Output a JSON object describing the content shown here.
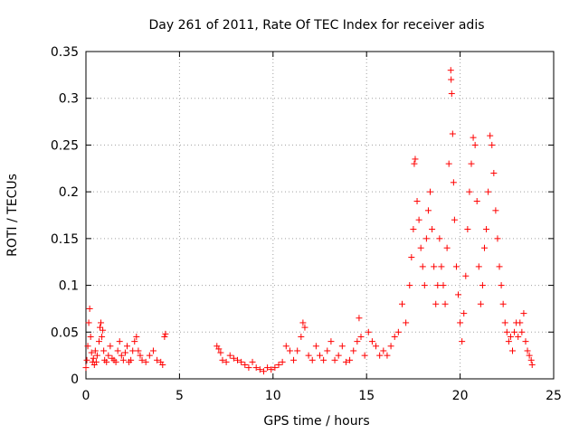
{
  "chart_data": {
    "type": "scatter",
    "title": "Day 261 of 2011, Rate Of TEC Index for receiver adis",
    "xlabel": "GPS time / hours",
    "ylabel": "ROTI / TECUs",
    "xlim": [
      0,
      25
    ],
    "ylim": [
      0,
      0.35
    ],
    "xticks": [
      0,
      5,
      10,
      15,
      20,
      25
    ],
    "xtick_labels": [
      "0",
      "5",
      "10",
      "15",
      "20",
      "25"
    ],
    "yticks": [
      0,
      0.05,
      0.1,
      0.15,
      0.2,
      0.25,
      0.3,
      0.35
    ],
    "ytick_labels": [
      "0",
      "0.05",
      "0.1",
      "0.15",
      "0.2",
      "0.25",
      "0.3",
      "0.35"
    ],
    "grid": true,
    "marker": "+",
    "color": "#ff0000",
    "series": [
      {
        "name": "ROTI",
        "points": [
          [
            0.0,
            0.012
          ],
          [
            0.05,
            0.02
          ],
          [
            0.1,
            0.035
          ],
          [
            0.15,
            0.06
          ],
          [
            0.2,
            0.075
          ],
          [
            0.25,
            0.045
          ],
          [
            0.3,
            0.028
          ],
          [
            0.35,
            0.018
          ],
          [
            0.4,
            0.022
          ],
          [
            0.45,
            0.015
          ],
          [
            0.5,
            0.03
          ],
          [
            0.55,
            0.018
          ],
          [
            0.6,
            0.025
          ],
          [
            0.7,
            0.04
          ],
          [
            0.75,
            0.055
          ],
          [
            0.8,
            0.06
          ],
          [
            0.85,
            0.045
          ],
          [
            0.9,
            0.052
          ],
          [
            0.95,
            0.03
          ],
          [
            1.0,
            0.02
          ],
          [
            1.1,
            0.018
          ],
          [
            1.2,
            0.025
          ],
          [
            1.3,
            0.035
          ],
          [
            1.4,
            0.022
          ],
          [
            1.5,
            0.02
          ],
          [
            1.6,
            0.018
          ],
          [
            1.7,
            0.03
          ],
          [
            1.8,
            0.04
          ],
          [
            1.9,
            0.025
          ],
          [
            2.0,
            0.02
          ],
          [
            2.1,
            0.028
          ],
          [
            2.2,
            0.035
          ],
          [
            2.3,
            0.018
          ],
          [
            2.4,
            0.02
          ],
          [
            2.5,
            0.03
          ],
          [
            2.6,
            0.04
          ],
          [
            2.7,
            0.045
          ],
          [
            2.8,
            0.03
          ],
          [
            2.9,
            0.025
          ],
          [
            3.0,
            0.02
          ],
          [
            3.2,
            0.018
          ],
          [
            3.4,
            0.025
          ],
          [
            3.6,
            0.03
          ],
          [
            3.8,
            0.02
          ],
          [
            4.0,
            0.018
          ],
          [
            4.1,
            0.015
          ],
          [
            4.2,
            0.045
          ],
          [
            4.25,
            0.048
          ],
          [
            7.0,
            0.035
          ],
          [
            7.1,
            0.032
          ],
          [
            7.2,
            0.028
          ],
          [
            7.3,
            0.02
          ],
          [
            7.5,
            0.018
          ],
          [
            7.7,
            0.025
          ],
          [
            7.9,
            0.022
          ],
          [
            8.1,
            0.02
          ],
          [
            8.3,
            0.018
          ],
          [
            8.5,
            0.015
          ],
          [
            8.7,
            0.012
          ],
          [
            8.9,
            0.018
          ],
          [
            9.1,
            0.012
          ],
          [
            9.3,
            0.01
          ],
          [
            9.5,
            0.008
          ],
          [
            9.7,
            0.012
          ],
          [
            9.9,
            0.01
          ],
          [
            10.1,
            0.012
          ],
          [
            10.3,
            0.015
          ],
          [
            10.5,
            0.018
          ],
          [
            10.7,
            0.035
          ],
          [
            10.9,
            0.03
          ],
          [
            11.1,
            0.02
          ],
          [
            11.3,
            0.03
          ],
          [
            11.5,
            0.045
          ],
          [
            11.6,
            0.06
          ],
          [
            11.7,
            0.055
          ],
          [
            11.9,
            0.025
          ],
          [
            12.1,
            0.02
          ],
          [
            12.3,
            0.035
          ],
          [
            12.5,
            0.025
          ],
          [
            12.7,
            0.02
          ],
          [
            12.9,
            0.03
          ],
          [
            13.1,
            0.04
          ],
          [
            13.3,
            0.02
          ],
          [
            13.5,
            0.025
          ],
          [
            13.7,
            0.035
          ],
          [
            13.9,
            0.018
          ],
          [
            14.1,
            0.02
          ],
          [
            14.3,
            0.03
          ],
          [
            14.5,
            0.04
          ],
          [
            14.6,
            0.065
          ],
          [
            14.7,
            0.045
          ],
          [
            14.9,
            0.025
          ],
          [
            15.1,
            0.05
          ],
          [
            15.3,
            0.04
          ],
          [
            15.5,
            0.035
          ],
          [
            15.7,
            0.025
          ],
          [
            15.9,
            0.03
          ],
          [
            16.1,
            0.025
          ],
          [
            16.3,
            0.035
          ],
          [
            16.5,
            0.045
          ],
          [
            16.7,
            0.05
          ],
          [
            16.9,
            0.08
          ],
          [
            17.1,
            0.06
          ],
          [
            17.3,
            0.1
          ],
          [
            17.4,
            0.13
          ],
          [
            17.5,
            0.16
          ],
          [
            17.55,
            0.23
          ],
          [
            17.6,
            0.235
          ],
          [
            17.7,
            0.19
          ],
          [
            17.8,
            0.17
          ],
          [
            17.9,
            0.14
          ],
          [
            18.0,
            0.12
          ],
          [
            18.1,
            0.1
          ],
          [
            18.2,
            0.15
          ],
          [
            18.3,
            0.18
          ],
          [
            18.4,
            0.2
          ],
          [
            18.5,
            0.16
          ],
          [
            18.6,
            0.12
          ],
          [
            18.7,
            0.08
          ],
          [
            18.8,
            0.1
          ],
          [
            18.9,
            0.15
          ],
          [
            19.0,
            0.12
          ],
          [
            19.1,
            0.1
          ],
          [
            19.2,
            0.08
          ],
          [
            19.3,
            0.14
          ],
          [
            19.4,
            0.23
          ],
          [
            19.5,
            0.33
          ],
          [
            19.52,
            0.32
          ],
          [
            19.55,
            0.305
          ],
          [
            19.6,
            0.262
          ],
          [
            19.65,
            0.21
          ],
          [
            19.7,
            0.17
          ],
          [
            19.8,
            0.12
          ],
          [
            19.9,
            0.09
          ],
          [
            20.0,
            0.06
          ],
          [
            20.1,
            0.04
          ],
          [
            20.2,
            0.07
          ],
          [
            20.3,
            0.11
          ],
          [
            20.4,
            0.16
          ],
          [
            20.5,
            0.2
          ],
          [
            20.6,
            0.23
          ],
          [
            20.7,
            0.258
          ],
          [
            20.8,
            0.25
          ],
          [
            20.9,
            0.19
          ],
          [
            21.0,
            0.12
          ],
          [
            21.1,
            0.08
          ],
          [
            21.2,
            0.1
          ],
          [
            21.3,
            0.14
          ],
          [
            21.4,
            0.16
          ],
          [
            21.5,
            0.2
          ],
          [
            21.6,
            0.26
          ],
          [
            21.7,
            0.25
          ],
          [
            21.8,
            0.22
          ],
          [
            21.9,
            0.18
          ],
          [
            22.0,
            0.15
          ],
          [
            22.1,
            0.12
          ],
          [
            22.2,
            0.1
          ],
          [
            22.3,
            0.08
          ],
          [
            22.4,
            0.06
          ],
          [
            22.5,
            0.05
          ],
          [
            22.6,
            0.04
          ],
          [
            22.7,
            0.045
          ],
          [
            22.8,
            0.03
          ],
          [
            22.9,
            0.05
          ],
          [
            23.0,
            0.06
          ],
          [
            23.1,
            0.045
          ],
          [
            23.2,
            0.06
          ],
          [
            23.3,
            0.05
          ],
          [
            23.4,
            0.07
          ],
          [
            23.5,
            0.04
          ],
          [
            23.6,
            0.03
          ],
          [
            23.7,
            0.025
          ],
          [
            23.8,
            0.02
          ],
          [
            23.85,
            0.015
          ]
        ]
      }
    ]
  }
}
